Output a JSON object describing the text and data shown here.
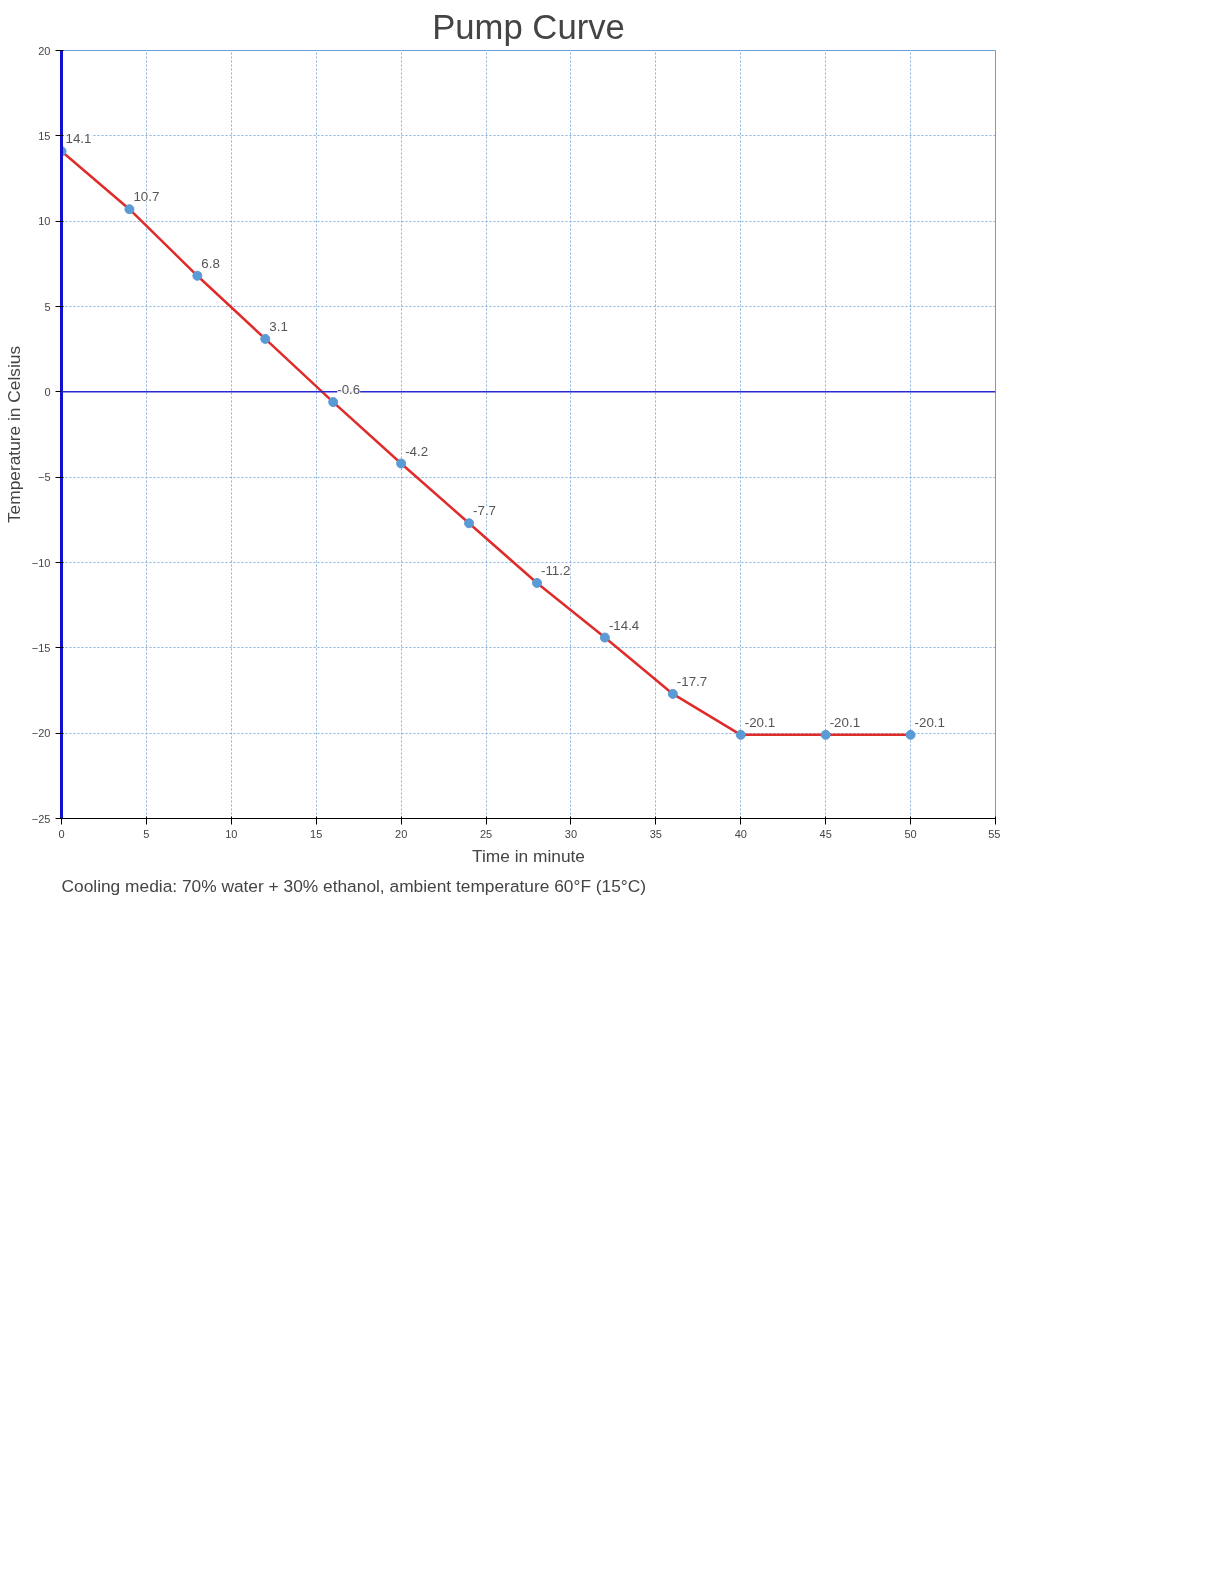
{
  "chart_data": {
    "type": "line",
    "title": "Pump Curve",
    "xlabel": "Time in minute",
    "ylabel": "Temperature in Celsius",
    "x": [
      0,
      4,
      8,
      12,
      16,
      20,
      24,
      28,
      32,
      36,
      40,
      45,
      50
    ],
    "series": [
      {
        "color": "#e02b2b",
        "values": [
          14.1,
          10.7,
          6.8,
          3.1,
          -0.6,
          -4.2,
          -7.7,
          -11.2,
          -14.4,
          -17.7,
          -20.1,
          -20.1,
          -20.1
        ]
      }
    ],
    "xlim": [
      0,
      55
    ],
    "xticks": [
      0,
      5,
      10,
      15,
      20,
      25,
      30,
      35,
      40,
      45,
      50,
      55
    ],
    "ylim": [
      -25,
      20
    ],
    "yticks": [
      -25,
      -20,
      -15,
      -10,
      -5,
      0,
      5,
      10,
      15,
      20
    ],
    "ref_lines": [
      {
        "axis": "y",
        "value": 0,
        "color": "#2a2ad0"
      }
    ],
    "grid": true,
    "marker": "circle",
    "line_style": "solid",
    "data_labels": true,
    "annotations": [
      "Cooling media: 70% water + 30% ethanol, ambient temperature 60°F (15°C)"
    ]
  }
}
